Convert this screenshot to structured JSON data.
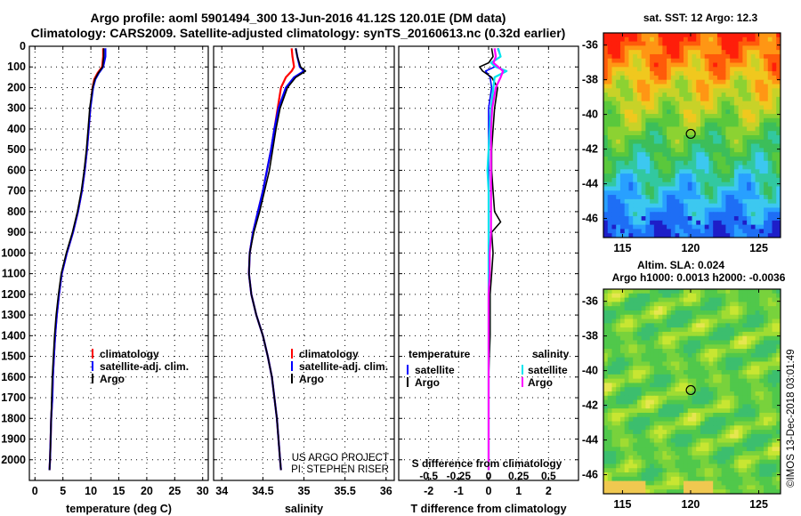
{
  "title_line1": "Argo profile: aoml 5901494_300 13-Jun-2016 41.12S 120.01E (DM data)",
  "title_line2": "Climatology: CARS2009. Satellite-adjusted climatology: synTS_20160613.nc (0.32d earlier)",
  "colors": {
    "climatology": "#ff0000",
    "satellite": "#0000ff",
    "argo": "#000000",
    "sal_satellite": "#00e5ee",
    "sal_argo": "#ff00ff"
  },
  "legend": {
    "climatology": "climatology",
    "satellite_adj": "satellite-adj. clim.",
    "argo": "Argo",
    "diff_temperature": "temperature",
    "diff_salinity": "salinity",
    "satellite": "satellite"
  },
  "credit_line1": "US ARGO PROJECT",
  "credit_line2": "PI: STEPHEN RISER",
  "s_diff_label": "S difference from climatology",
  "s_diff_ticks": [
    "-0.5",
    "-0.25",
    "0",
    "0.25",
    "0.5"
  ],
  "sst_title": "sat. SST: 12 Argo: 12.3",
  "sla_title_line1": "Altim. SLA: 0.024",
  "sla_title_line2": "Argo h1000: 0.0013 h2000: -0.0036",
  "imos_stamp": "©IMOS 13-Dec-2018 03:01:49",
  "map_lat_ticks": [
    "-36",
    "-38",
    "-40",
    "-42",
    "-44",
    "-46"
  ],
  "map_lon_ticks": [
    "115",
    "120",
    "125"
  ],
  "profile_location": {
    "lon": 120.01,
    "lat": -41.12
  },
  "chart_data": [
    {
      "type": "line",
      "title": "",
      "xlabel": "temperature (deg C)",
      "ylabel": "",
      "xlim": [
        -1,
        31
      ],
      "ylim": [
        2100,
        0
      ],
      "xticks": [
        0,
        5,
        10,
        15,
        20,
        25,
        30
      ],
      "yticks": [
        0,
        100,
        200,
        300,
        400,
        500,
        600,
        700,
        800,
        900,
        1000,
        1100,
        1200,
        1300,
        1400,
        1500,
        1600,
        1700,
        1800,
        1900,
        2000
      ],
      "depth": [
        10,
        50,
        100,
        130,
        160,
        200,
        300,
        400,
        500,
        600,
        700,
        800,
        900,
        1000,
        1100,
        1200,
        1300,
        1400,
        1500,
        1600,
        1700,
        1800,
        1900,
        2000,
        2050
      ],
      "series": [
        {
          "name": "climatology",
          "values": [
            12.2,
            12.2,
            12.0,
            11.2,
            10.6,
            10.3,
            9.9,
            9.6,
            9.3,
            8.9,
            8.4,
            7.7,
            6.8,
            5.7,
            4.8,
            4.3,
            3.9,
            3.6,
            3.4,
            3.2,
            3.1,
            2.9,
            2.8,
            2.7,
            2.6
          ]
        },
        {
          "name": "satellite-adj. clim.",
          "values": [
            12.6,
            12.6,
            12.2,
            11.4,
            10.8,
            10.4,
            9.9,
            9.6,
            9.3,
            8.9,
            8.4,
            7.7,
            6.8,
            5.7,
            4.8,
            4.3,
            3.9,
            3.6,
            3.4,
            3.2,
            3.1,
            2.9,
            2.8,
            2.7,
            2.6
          ]
        },
        {
          "name": "Argo",
          "values": [
            12.3,
            12.3,
            12.1,
            11.3,
            10.7,
            10.3,
            9.8,
            9.5,
            9.2,
            8.8,
            8.3,
            7.6,
            6.7,
            5.6,
            4.7,
            4.2,
            3.8,
            3.5,
            3.3,
            3.1,
            3.0,
            2.9,
            2.8,
            2.7,
            2.6
          ]
        }
      ]
    },
    {
      "type": "line",
      "title": "",
      "xlabel": "salinity",
      "ylabel": "",
      "xlim": [
        33.9,
        36.1
      ],
      "ylim": [
        2100,
        0
      ],
      "xticks": [
        34,
        34.5,
        35,
        35.5,
        36
      ],
      "xtick_labels": [
        "34",
        "34.5",
        "35",
        "35.5",
        "36"
      ],
      "depth": [
        10,
        50,
        100,
        120,
        150,
        200,
        300,
        400,
        500,
        600,
        700,
        800,
        900,
        1000,
        1100,
        1200,
        1300,
        1400,
        1500,
        1600,
        1700,
        1800,
        1900,
        2000,
        2050
      ],
      "series": [
        {
          "name": "climatology",
          "values": [
            34.85,
            34.86,
            34.88,
            34.85,
            34.78,
            34.72,
            34.68,
            34.64,
            34.6,
            34.55,
            34.5,
            34.44,
            34.38,
            34.34,
            34.33,
            34.36,
            34.42,
            34.5,
            34.56,
            34.61,
            34.64,
            34.67,
            34.69,
            34.71,
            34.72
          ]
        },
        {
          "name": "satellite-adj. clim.",
          "values": [
            34.9,
            34.92,
            34.95,
            35.0,
            34.88,
            34.78,
            34.69,
            34.64,
            34.6,
            34.55,
            34.5,
            34.44,
            34.38,
            34.34,
            34.33,
            34.36,
            34.42,
            34.5,
            34.56,
            34.61,
            34.64,
            34.67,
            34.69,
            34.71,
            34.72
          ]
        },
        {
          "name": "Argo",
          "values": [
            34.9,
            34.92,
            34.96,
            35.02,
            34.9,
            34.8,
            34.71,
            34.66,
            34.62,
            34.58,
            34.52,
            34.46,
            34.39,
            34.34,
            34.33,
            34.36,
            34.42,
            34.5,
            34.56,
            34.61,
            34.64,
            34.67,
            34.69,
            34.71,
            34.72
          ]
        }
      ]
    },
    {
      "type": "line",
      "title": "",
      "xlabel": "T difference from climatology",
      "ylabel": "",
      "xlim": [
        -3,
        3
      ],
      "ylim": [
        2100,
        0
      ],
      "xticks": [
        -2,
        -1,
        0,
        1,
        2
      ],
      "secondary_xlabel": "S difference from climatology",
      "secondary_xlim": [
        -0.75,
        0.75
      ],
      "depth": [
        10,
        50,
        80,
        100,
        120,
        150,
        200,
        300,
        400,
        500,
        600,
        700,
        800,
        850,
        900,
        1000,
        1100,
        1200,
        1400,
        1600,
        1800,
        2000,
        2050
      ],
      "series": [
        {
          "name": "temperature satellite",
          "axis": "T",
          "values": [
            0.3,
            0.4,
            0.1,
            0.2,
            -0.1,
            0.05,
            0.1,
            0.0,
            0.0,
            0.0,
            0.0,
            0.0,
            0.0,
            0.0,
            0.0,
            0.0,
            0.0,
            0.0,
            0.0,
            0.0,
            0.0,
            0.0,
            0.0
          ]
        },
        {
          "name": "temperature Argo",
          "axis": "T",
          "values": [
            0.1,
            0.15,
            0.0,
            -0.3,
            -0.2,
            0.1,
            0.3,
            0.2,
            0.15,
            0.1,
            0.1,
            0.15,
            0.2,
            0.4,
            0.1,
            0.15,
            0.1,
            0.05,
            0.05,
            0.0,
            0.0,
            0.0,
            0.0
          ]
        },
        {
          "name": "salinity satellite",
          "axis": "S",
          "values": [
            0.08,
            0.1,
            0.02,
            0.06,
            0.15,
            0.05,
            0.04,
            0.02,
            0.01,
            0.0,
            -0.01,
            0.0,
            0.0,
            0.0,
            0.0,
            0.0,
            0.0,
            0.0,
            0.0,
            0.0,
            0.0,
            0.0,
            0.0
          ]
        },
        {
          "name": "salinity Argo",
          "axis": "S",
          "values": [
            0.05,
            0.06,
            0.04,
            0.08,
            0.12,
            0.1,
            0.06,
            0.03,
            0.02,
            0.02,
            0.02,
            0.02,
            0.02,
            0.02,
            0.02,
            0.01,
            0.01,
            0.0,
            0.0,
            0.0,
            0.0,
            0.0,
            0.0
          ]
        }
      ]
    }
  ]
}
